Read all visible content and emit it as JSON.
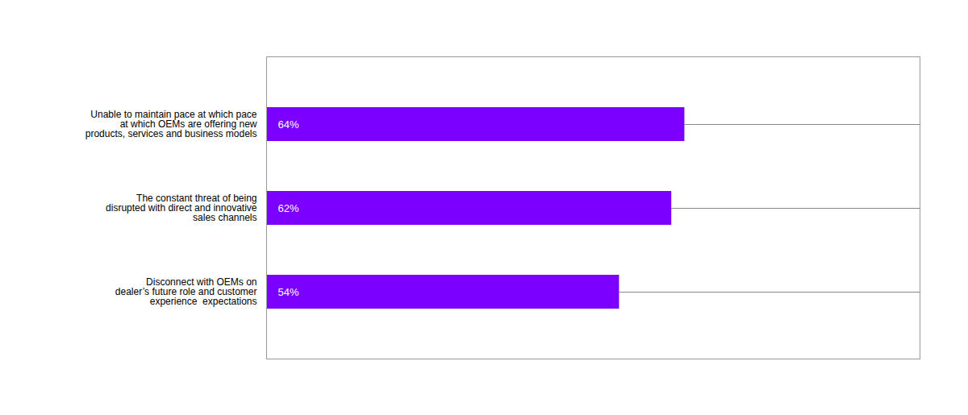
{
  "chart_data": {
    "type": "bar",
    "orientation": "horizontal",
    "categories": [
      "Disconnect with OEMs on\ndealer’s future role and customer\nexperience  expectations",
      "The constant threat of being\ndisrupted with direct and innovative\nsales channels",
      "Unable to maintain pace at which pace\nat which OEMs are offering new\nproducts, services and business models"
    ],
    "values": [
      54,
      62,
      64
    ],
    "value_labels": [
      "54%",
      "62%",
      "64%"
    ],
    "data_labels": true,
    "color": "#7B00FF",
    "xlim": [
      0,
      100
    ],
    "tick_labels": "y",
    "grid": false
  }
}
